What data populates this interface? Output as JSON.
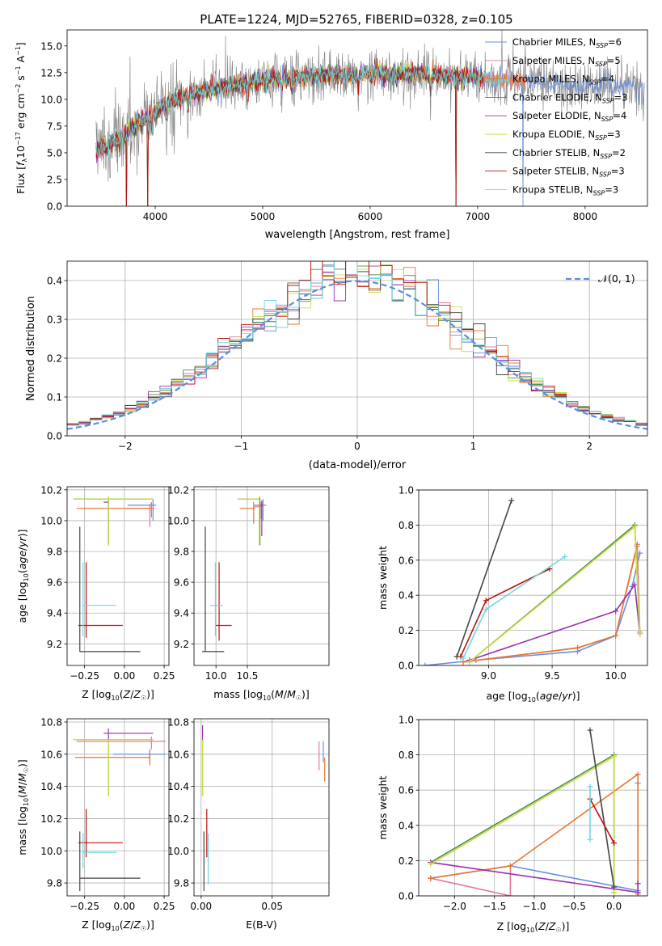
{
  "figure": {
    "title": "PLATE=1224, MJD=52765, FIBERID=0328, z=0.105"
  },
  "colors": {
    "Chabrier MILES": "#6a8fe0",
    "Salpeter MILES": "#e07b9a",
    "Kroupa MILES": "#e8772e",
    "Chabrier ELODIE": "#4f8a4f",
    "Salpeter ELODIE": "#9b30b0",
    "Kroupa ELODIE": "#c8e040",
    "Chabrier STELIB": "#444444",
    "Salpeter STELIB": "#c01010",
    "Kroupa STELIB": "#70d8e0",
    "data": "#7f7f7f",
    "normal": "#5a8ee0"
  },
  "chart_data": [
    {
      "id": "spectrum",
      "type": "line",
      "xlabel": "wavelength [Angstrom, rest frame]",
      "ylabel": "Flux [f_λ 10^-17 erg cm^-2 s^-1 A^-1]",
      "xlim": [
        3180,
        8580
      ],
      "ylim": [
        0,
        16.5
      ],
      "xticks": [
        4000,
        5000,
        6000,
        7000,
        8000
      ],
      "yticks": [
        0.0,
        2.5,
        5.0,
        7.5,
        10.0,
        12.5,
        15.0
      ],
      "legend_position": "right",
      "legend": [
        {
          "label": "Chabrier MILES, N_SSP=6",
          "base": "Chabrier MILES, N",
          "sub": "SSP",
          "tail": "=6"
        },
        {
          "label": "Salpeter MILES, N_SSP=5",
          "base": "Salpeter MILES, N",
          "sub": "SSP",
          "tail": "=5"
        },
        {
          "label": "Kroupa MILES, N_SSP=4",
          "base": "Kroupa MILES, N",
          "sub": "SSP",
          "tail": "=4"
        },
        {
          "label": "Chabrier ELODIE, N_SSP=3",
          "base": "Chabrier ELODIE, N",
          "sub": "SSP",
          "tail": "=3"
        },
        {
          "label": "Salpeter ELODIE, N_SSP=4",
          "base": "Salpeter ELODIE, N",
          "sub": "SSP",
          "tail": "=4"
        },
        {
          "label": "Kroupa ELODIE, N_SSP=3",
          "base": "Kroupa ELODIE, N",
          "sub": "SSP",
          "tail": "=3"
        },
        {
          "label": "Chabrier STELIB, N_SSP=2",
          "base": "Chabrier STELIB, N",
          "sub": "SSP",
          "tail": "=2"
        },
        {
          "label": "Salpeter STELIB, N_SSP=3",
          "base": "Salpeter STELIB, N",
          "sub": "SSP",
          "tail": "=3"
        },
        {
          "label": "Kroupa STELIB, N_SSP=3",
          "base": "Kroupa STELIB, N",
          "sub": "SSP",
          "tail": "=3"
        }
      ],
      "continuum_anchors": [
        [
          3450,
          5.2
        ],
        [
          3600,
          5.8
        ],
        [
          3700,
          6.6
        ],
        [
          3800,
          7.4
        ],
        [
          3950,
          8.5
        ],
        [
          4100,
          9.6
        ],
        [
          4300,
          10.3
        ],
        [
          4500,
          10.9
        ],
        [
          4800,
          11.4
        ],
        [
          5000,
          11.8
        ],
        [
          5500,
          12.2
        ],
        [
          6000,
          12.4
        ],
        [
          6500,
          12.4
        ],
        [
          7000,
          12.0
        ],
        [
          7500,
          11.6
        ],
        [
          8000,
          11.2
        ],
        [
          8500,
          11.4
        ]
      ],
      "data_range": [
        3450,
        8550
      ],
      "model_range": [
        3450,
        7450
      ],
      "model_dips": [
        3730,
        3930,
        6800,
        7420
      ],
      "absorption_lines": [
        3934,
        3969,
        4102,
        4304,
        4861,
        5175,
        5270,
        5890,
        6563,
        8498,
        8542
      ]
    },
    {
      "id": "residuals",
      "type": "bar",
      "xlabel": "(data-model)/error",
      "ylabel": "Normed distribution",
      "xlim": [
        -2.5,
        2.5
      ],
      "ylim": [
        0,
        0.45
      ],
      "xticks": [
        -2,
        -1,
        0,
        1,
        2
      ],
      "yticks": [
        0.0,
        0.1,
        0.2,
        0.3,
        0.4
      ],
      "legend": "𝒩(0, 1)",
      "legend_position": "top-right",
      "grid": true,
      "bin_width": 0.1
    },
    {
      "id": "age_vs_z",
      "type": "scatter",
      "xlabel": "Z [log10(Z/Z☉)]",
      "ylabel": "age [log10(age/yr)]",
      "xlim": [
        -0.36,
        0.28
      ],
      "ylim": [
        9.06,
        10.22
      ],
      "xticks": [
        -0.25,
        0.0,
        0.25
      ],
      "yticks": [
        9.2,
        9.4,
        9.6,
        9.8,
        10.0,
        10.2
      ],
      "grid": true,
      "errorbars": [
        {
          "c": "Chabrier MILES",
          "x": 0.18,
          "xerr": [
            0.16,
            0.02
          ],
          "y": 10.1,
          "yerr": [
            0.1,
            0.04
          ]
        },
        {
          "c": "Salpeter MILES",
          "x": 0.16,
          "xerr": [
            0.15,
            0.03
          ],
          "y": 10.08,
          "yerr": [
            0.12,
            0.03
          ]
        },
        {
          "c": "Kroupa MILES",
          "x": 0.17,
          "xerr": [
            0.47,
            0.0
          ],
          "y": 10.08,
          "yerr": [
            0.06,
            0.04
          ]
        },
        {
          "c": "Chabrier ELODIE",
          "x": -0.1,
          "xerr": [
            0.22,
            0.28
          ],
          "y": 10.14,
          "yerr": [
            0.3,
            0.01
          ]
        },
        {
          "c": "Salpeter ELODIE",
          "x": -0.1,
          "xerr": [
            0.03,
            0.0
          ],
          "y": 10.12,
          "yerr": [
            0.28,
            0.02
          ]
        },
        {
          "c": "Kroupa ELODIE",
          "x": -0.1,
          "xerr": [
            0.22,
            0.28
          ],
          "y": 10.14,
          "yerr": [
            0.3,
            0.02
          ]
        },
        {
          "c": "Chabrier STELIB",
          "x": -0.28,
          "xerr": [
            0.0,
            0.38
          ],
          "y": 9.15,
          "yerr": [
            0.0,
            0.81
          ]
        },
        {
          "c": "Salpeter STELIB",
          "x": -0.24,
          "xerr": [
            0.05,
            0.23
          ],
          "y": 9.32,
          "yerr": [
            0.08,
            0.41
          ]
        },
        {
          "c": "Kroupa STELIB",
          "x": -0.26,
          "xerr": [
            0.0,
            0.21
          ],
          "y": 9.45,
          "yerr": [
            0.2,
            0.28
          ]
        }
      ]
    },
    {
      "id": "age_vs_mass",
      "type": "scatter",
      "xlabel": "mass [log10(M/M☉)]",
      "ylabel": "",
      "xlim": [
        9.65,
        11.8
      ],
      "ylim": [
        9.06,
        10.22
      ],
      "xticks": [
        10.0,
        10.5
      ],
      "yticks": [
        9.2,
        9.4,
        9.6,
        9.8,
        10.0,
        10.2
      ],
      "grid": true,
      "errorbars": [
        {
          "c": "Chabrier MILES",
          "x": 10.75,
          "xerr": [
            0.15,
            0.05
          ],
          "y": 10.1,
          "yerr": [
            0.1,
            0.04
          ]
        },
        {
          "c": "Salpeter MILES",
          "x": 10.72,
          "xerr": [
            0.12,
            0.03
          ],
          "y": 10.09,
          "yerr": [
            0.08,
            0.03
          ]
        },
        {
          "c": "Kroupa MILES",
          "x": 10.6,
          "xerr": [
            0.22,
            0.02
          ],
          "y": 10.08,
          "yerr": [
            0.1,
            0.04
          ]
        },
        {
          "c": "Chabrier ELODIE",
          "x": 10.7,
          "xerr": [
            0.35,
            0.0
          ],
          "y": 10.14,
          "yerr": [
            0.3,
            0.01
          ]
        },
        {
          "c": "Salpeter ELODIE",
          "x": 10.73,
          "xerr": [
            0.06,
            0.02
          ],
          "y": 10.1,
          "yerr": [
            0.2,
            0.03
          ]
        },
        {
          "c": "Kroupa ELODIE",
          "x": 10.69,
          "xerr": [
            0.35,
            0.0
          ],
          "y": 10.14,
          "yerr": [
            0.3,
            0.02
          ]
        },
        {
          "c": "Chabrier STELIB",
          "x": 9.83,
          "xerr": [
            0.05,
            0.3
          ],
          "y": 9.15,
          "yerr": [
            0.0,
            0.81
          ]
        },
        {
          "c": "Salpeter STELIB",
          "x": 10.05,
          "xerr": [
            0.05,
            0.2
          ],
          "y": 9.32,
          "yerr": [
            0.1,
            0.41
          ]
        },
        {
          "c": "Kroupa STELIB",
          "x": 9.99,
          "xerr": [
            0.08,
            0.12
          ],
          "y": 9.45,
          "yerr": [
            0.2,
            0.28
          ]
        }
      ]
    },
    {
      "id": "sfh_age",
      "type": "line",
      "xlabel": "age [log10(age/yr)]",
      "ylabel": "mass weight",
      "xlim": [
        8.45,
        10.25
      ],
      "ylim": [
        0,
        1.0
      ],
      "xticks": [
        9.0,
        9.5,
        10.0
      ],
      "yticks": [
        0.0,
        0.2,
        0.4,
        0.6,
        0.8,
        1.0
      ],
      "grid": true,
      "series": [
        {
          "name": "Chabrier MILES",
          "x": [
            8.5,
            8.9,
            9.7,
            10.0,
            10.13,
            10.19
          ],
          "y": [
            0.0,
            0.03,
            0.08,
            0.17,
            0.45,
            0.64
          ]
        },
        {
          "name": "Salpeter MILES",
          "x": [
            8.8,
            9.7,
            10.0,
            10.17,
            10.19
          ],
          "y": [
            0.02,
            0.1,
            0.17,
            0.68,
            0.19
          ]
        },
        {
          "name": "Kroupa MILES",
          "x": [
            8.8,
            9.7,
            10.0,
            10.17
          ],
          "y": [
            0.02,
            0.1,
            0.17,
            0.69
          ]
        },
        {
          "name": "Chabrier ELODIE",
          "x": [
            8.85,
            10.15,
            10.19
          ],
          "y": [
            0.02,
            0.8,
            0.18
          ]
        },
        {
          "name": "Salpeter ELODIE",
          "x": [
            8.85,
            10.0,
            10.15,
            10.19
          ],
          "y": [
            0.03,
            0.31,
            0.46,
            0.18
          ]
        },
        {
          "name": "Kroupa ELODIE",
          "x": [
            8.85,
            10.15,
            10.19
          ],
          "y": [
            0.02,
            0.79,
            0.18
          ]
        },
        {
          "name": "Chabrier STELIB",
          "x": [
            8.75,
            9.18
          ],
          "y": [
            0.05,
            0.94
          ]
        },
        {
          "name": "Salpeter STELIB",
          "x": [
            8.78,
            8.98,
            9.48
          ],
          "y": [
            0.05,
            0.37,
            0.55
          ]
        },
        {
          "name": "Kroupa STELIB",
          "x": [
            8.8,
            8.98,
            9.6
          ],
          "y": [
            0.04,
            0.32,
            0.62
          ]
        }
      ]
    },
    {
      "id": "mass_vs_z",
      "type": "scatter",
      "xlabel": "Z [log10(Z/Z☉)]",
      "ylabel": "mass [log10(M/M☉)]",
      "xlim": [
        -0.36,
        0.28
      ],
      "ylim": [
        9.72,
        10.82
      ],
      "xticks": [
        -0.25,
        0.0,
        0.25
      ],
      "yticks": [
        9.8,
        10.0,
        10.2,
        10.4,
        10.6,
        10.8
      ],
      "grid": true,
      "errorbars": [
        {
          "c": "Chabrier MILES",
          "x": 0.16,
          "xerr": [
            0.23,
            0.1
          ],
          "y": 10.6,
          "yerr": [
            0.05,
            0.03
          ]
        },
        {
          "c": "Salpeter MILES",
          "x": 0.17,
          "xerr": [
            0.47,
            0.09
          ],
          "y": 10.68,
          "yerr": [
            0.05,
            0.03
          ]
        },
        {
          "c": "Kroupa MILES",
          "x": 0.16,
          "xerr": [
            0.47,
            0.0
          ],
          "y": 10.58,
          "yerr": [
            0.05,
            0.03
          ]
        },
        {
          "c": "Chabrier ELODIE",
          "x": -0.1,
          "xerr": [
            0.22,
            0.28
          ],
          "y": 10.69,
          "yerr": [
            0.35,
            0.0
          ]
        },
        {
          "c": "Salpeter ELODIE",
          "x": -0.1,
          "xerr": [
            0.03,
            0.28
          ],
          "y": 10.73,
          "yerr": [
            0.06,
            0.03
          ]
        },
        {
          "c": "Kroupa ELODIE",
          "x": -0.1,
          "xerr": [
            0.22,
            0.28
          ],
          "y": 10.69,
          "yerr": [
            0.35,
            0.0
          ]
        },
        {
          "c": "Chabrier STELIB",
          "x": -0.28,
          "xerr": [
            0.0,
            0.38
          ],
          "y": 9.83,
          "yerr": [
            0.08,
            0.29
          ]
        },
        {
          "c": "Salpeter STELIB",
          "x": -0.24,
          "xerr": [
            0.05,
            0.23
          ],
          "y": 10.05,
          "yerr": [
            0.09,
            0.21
          ]
        },
        {
          "c": "Kroupa STELIB",
          "x": -0.26,
          "xerr": [
            0.0,
            0.21
          ],
          "y": 9.99,
          "yerr": [
            0.1,
            0.12
          ]
        }
      ]
    },
    {
      "id": "mass_vs_ebv",
      "type": "scatter",
      "xlabel": "E(B-V)",
      "ylabel": "",
      "xlim": [
        -0.005,
        0.09
      ],
      "ylim": [
        9.72,
        10.82
      ],
      "xticks": [
        0.0,
        0.05
      ],
      "yticks": [
        9.8,
        10.0,
        10.2,
        10.4,
        10.6,
        10.8
      ],
      "grid": true,
      "errorbars": [
        {
          "c": "Chabrier MILES",
          "x": 0.086,
          "xerr": [
            0,
            0
          ],
          "y": 10.6,
          "yerr": [
            0.05,
            0.08
          ]
        },
        {
          "c": "Salpeter MILES",
          "x": 0.083,
          "xerr": [
            0,
            0
          ],
          "y": 10.6,
          "yerr": [
            0.1,
            0.08
          ]
        },
        {
          "c": "Kroupa MILES",
          "x": 0.087,
          "xerr": [
            0,
            0
          ],
          "y": 10.58,
          "yerr": [
            0.15,
            0.0
          ]
        },
        {
          "c": "Chabrier ELODIE",
          "x": 0.001,
          "xerr": [
            0,
            0
          ],
          "y": 10.69,
          "yerr": [
            0.35,
            0.0
          ]
        },
        {
          "c": "Salpeter ELODIE",
          "x": 0.001,
          "xerr": [
            0,
            0
          ],
          "y": 10.73,
          "yerr": [
            0.06,
            0.05
          ]
        },
        {
          "c": "Kroupa ELODIE",
          "x": 0.001,
          "xerr": [
            0,
            0
          ],
          "y": 10.69,
          "yerr": [
            0.35,
            0.0
          ]
        },
        {
          "c": "Chabrier STELIB",
          "x": 0.002,
          "xerr": [
            0,
            0
          ],
          "y": 9.83,
          "yerr": [
            0.08,
            0.29
          ]
        },
        {
          "c": "Salpeter STELIB",
          "x": 0.004,
          "xerr": [
            0,
            0
          ],
          "y": 10.05,
          "yerr": [
            0.09,
            0.21
          ]
        },
        {
          "c": "Kroupa STELIB",
          "x": 0.005,
          "xerr": [
            0,
            0
          ],
          "y": 9.99,
          "yerr": [
            0.2,
            0.12
          ]
        }
      ]
    },
    {
      "id": "sfh_z",
      "type": "line",
      "xlabel": "Z [log10(Z/Z☉)]",
      "ylabel": "mass weight",
      "xlim": [
        -2.45,
        0.42
      ],
      "ylim": [
        0,
        1.0
      ],
      "xticks": [
        -2.0,
        -1.5,
        -1.0,
        -0.5,
        0.0
      ],
      "yticks": [
        0.0,
        0.2,
        0.4,
        0.6,
        0.8,
        1.0
      ],
      "grid": true,
      "series": [
        {
          "name": "Chabrier MILES",
          "x": [
            -2.3,
            -1.3,
            0.3,
            0.3
          ],
          "y": [
            0.1,
            0.17,
            0.03,
            0.64
          ]
        },
        {
          "name": "Salpeter MILES",
          "x": [
            -2.3,
            -1.3,
            -1.3
          ],
          "y": [
            0.1,
            0.0,
            0.17
          ]
        },
        {
          "name": "Kroupa MILES",
          "x": [
            -2.3,
            -1.3,
            0.3,
            0.3
          ],
          "y": [
            0.1,
            0.17,
            0.69,
            0.01
          ]
        },
        {
          "name": "Chabrier ELODIE",
          "x": [
            -2.3,
            0.0,
            0.0
          ],
          "y": [
            0.19,
            0.8,
            0.02
          ]
        },
        {
          "name": "Salpeter ELODIE",
          "x": [
            -2.3,
            0.3,
            0.3
          ],
          "y": [
            0.19,
            0.02,
            0.07
          ]
        },
        {
          "name": "Kroupa ELODIE",
          "x": [
            -2.3,
            0.0,
            0.0
          ],
          "y": [
            0.18,
            0.79,
            0.02
          ]
        },
        {
          "name": "Chabrier STELIB",
          "x": [
            -0.3,
            0.0
          ],
          "y": [
            0.94,
            0.05
          ]
        },
        {
          "name": "Salpeter STELIB",
          "x": [
            -0.3,
            0.0
          ],
          "y": [
            0.55,
            0.3
          ]
        },
        {
          "name": "Kroupa STELIB",
          "x": [
            -0.3,
            -0.3
          ],
          "y": [
            0.62,
            0.32
          ]
        }
      ]
    }
  ]
}
